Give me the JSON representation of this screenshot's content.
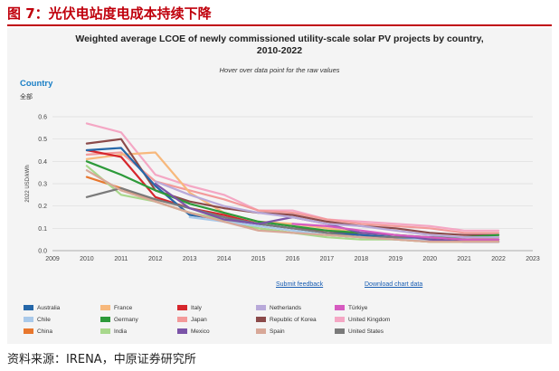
{
  "figure": {
    "title": "图 7：光伏电站度电成本持续下降",
    "source": "资料来源：IRENA，中原证券研究所"
  },
  "filter": {
    "label": "Country",
    "value": "全部"
  },
  "links": {
    "submit_feedback": "Submit feedback",
    "download_data": "Download chart data"
  },
  "chart_data": {
    "type": "line",
    "title": "Weighted average LCOE of newly commissioned utility-scale solar PV projects by country, 2010-2022",
    "title_lines": [
      "Weighted average LCOE of newly commissioned utility-scale solar PV projects by country,",
      "2010-2022"
    ],
    "subtitle": "Hover over data point for the raw values",
    "ylabel": "2022 USD/kWh",
    "xlabel": "",
    "xlim": [
      2009,
      2023
    ],
    "ylim": [
      0,
      0.6
    ],
    "x_ticks": [
      "2009",
      "2010",
      "2011",
      "2012",
      "2013",
      "2014",
      "2015",
      "2016",
      "2017",
      "2018",
      "2019",
      "2020",
      "2021",
      "2022",
      "2023"
    ],
    "y_ticks": [
      "0.0",
      "0.1",
      "0.2",
      "0.3",
      "0.4",
      "0.5",
      "0.6"
    ],
    "grid": true,
    "legend_position": "bottom",
    "series": [
      {
        "name": "United Kingdom",
        "color": "#f4a7c4",
        "x": [
          2010,
          2011,
          2012,
          2013,
          2014,
          2015,
          2016,
          2017,
          2018,
          2019,
          2020,
          2021,
          2022
        ],
        "values": [
          0.57,
          0.53,
          0.34,
          0.29,
          0.25,
          0.18,
          0.18,
          0.14,
          0.13,
          0.12,
          0.11,
          0.09,
          0.09
        ]
      },
      {
        "name": "Japan",
        "color": "#f39a9a",
        "x": [
          2010,
          2011,
          2012,
          2013,
          2014,
          2015,
          2016,
          2017,
          2018,
          2019,
          2020,
          2021,
          2022
        ],
        "values": [
          0.43,
          0.44,
          0.31,
          0.27,
          0.23,
          0.18,
          0.17,
          0.14,
          0.12,
          0.11,
          0.1,
          0.08,
          0.08
        ]
      },
      {
        "name": "France",
        "color": "#f7b87c",
        "x": [
          2010,
          2011,
          2012,
          2013,
          2014,
          2015,
          2016,
          2017,
          2018,
          2019,
          2020,
          2021,
          2022
        ],
        "values": [
          0.41,
          0.43,
          0.44,
          0.26,
          0.17,
          0.13,
          0.12,
          0.1,
          0.08,
          0.07,
          0.06,
          0.05,
          0.06
        ]
      },
      {
        "name": "Republic of Korea",
        "color": "#8b4a4a",
        "x": [
          2010,
          2011,
          2012,
          2013,
          2014,
          2015,
          2016,
          2017,
          2018,
          2019,
          2020,
          2021,
          2022
        ],
        "values": [
          0.48,
          0.5,
          0.27,
          0.22,
          0.19,
          0.17,
          0.16,
          0.13,
          0.11,
          0.1,
          0.08,
          0.07,
          0.07
        ]
      },
      {
        "name": "Italy",
        "color": "#d6262c",
        "x": [
          2010,
          2011,
          2012,
          2013,
          2014,
          2015,
          2016,
          2017,
          2018,
          2019,
          2020,
          2021,
          2022
        ],
        "values": [
          0.45,
          0.42,
          0.24,
          0.19,
          0.16,
          0.12,
          0.1,
          0.09,
          0.07,
          0.06,
          0.05,
          0.05,
          0.05
        ]
      },
      {
        "name": "Australia",
        "color": "#2567a9",
        "x": [
          2010,
          2011,
          2012,
          2013,
          2014,
          2015,
          2016,
          2017,
          2018,
          2019,
          2020,
          2021,
          2022
        ],
        "values": [
          0.45,
          0.46,
          0.29,
          0.16,
          0.14,
          0.12,
          0.1,
          0.08,
          0.07,
          0.06,
          0.05,
          0.04,
          0.04
        ]
      },
      {
        "name": "Germany",
        "color": "#2d9a3a",
        "x": [
          2010,
          2011,
          2012,
          2013,
          2014,
          2015,
          2016,
          2017,
          2018,
          2019,
          2020,
          2021,
          2022
        ],
        "values": [
          0.4,
          0.34,
          0.27,
          0.21,
          0.17,
          0.13,
          0.11,
          0.09,
          0.08,
          0.07,
          0.06,
          0.06,
          0.07
        ]
      },
      {
        "name": "China",
        "color": "#e8772e",
        "x": [
          2010,
          2011,
          2012,
          2013,
          2014,
          2015,
          2016,
          2017,
          2018,
          2019,
          2020,
          2021,
          2022
        ],
        "values": [
          0.33,
          0.28,
          0.22,
          0.17,
          0.13,
          0.1,
          0.08,
          0.07,
          0.06,
          0.05,
          0.04,
          0.04,
          0.04
        ]
      },
      {
        "name": "India",
        "color": "#a8d88c",
        "x": [
          2010,
          2011,
          2012,
          2013,
          2014,
          2015,
          2016,
          2017,
          2018,
          2019,
          2020,
          2021,
          2022
        ],
        "values": [
          0.38,
          0.25,
          0.22,
          0.17,
          0.14,
          0.1,
          0.08,
          0.06,
          0.05,
          0.05,
          0.04,
          0.04,
          0.04
        ]
      },
      {
        "name": "United States",
        "color": "#7a7a7a",
        "x": [
          2010,
          2011,
          2012,
          2013,
          2014,
          2015,
          2016,
          2017,
          2018,
          2019,
          2020,
          2021,
          2022
        ],
        "values": [
          0.24,
          0.28,
          0.23,
          0.19,
          0.15,
          0.12,
          0.1,
          0.08,
          0.06,
          0.06,
          0.06,
          0.05,
          0.05
        ]
      },
      {
        "name": "Chile",
        "color": "#a9c9ea",
        "x": [
          2013,
          2014,
          2015,
          2016,
          2017,
          2018,
          2019,
          2020,
          2021,
          2022
        ],
        "values": [
          0.15,
          0.13,
          0.11,
          0.09,
          0.07,
          0.06,
          0.05,
          0.05,
          0.04,
          0.04
        ]
      },
      {
        "name": "Mexico",
        "color": "#7b54a8",
        "x": [
          2012,
          2013,
          2014,
          2015,
          2016,
          2017,
          2018,
          2019,
          2020,
          2021,
          2022
        ],
        "values": [
          0.3,
          0.19,
          0.14,
          0.12,
          0.15,
          0.12,
          0.08,
          0.07,
          0.05,
          0.04,
          0.04
        ]
      },
      {
        "name": "Netherlands",
        "color": "#b8a9d9",
        "x": [
          2012,
          2013,
          2014,
          2015,
          2016,
          2017,
          2018,
          2019,
          2020,
          2021,
          2022
        ],
        "values": [
          0.31,
          0.25,
          0.2,
          0.17,
          0.15,
          0.12,
          0.11,
          0.09,
          0.07,
          0.06,
          0.06
        ]
      },
      {
        "name": "Spain",
        "color": "#d8a898",
        "x": [
          2010,
          2011,
          2012,
          2013,
          2014,
          2015,
          2016,
          2017,
          2018,
          2019,
          2020,
          2021,
          2022
        ],
        "values": [
          0.36,
          0.27,
          0.22,
          0.17,
          0.13,
          0.09,
          0.08,
          0.07,
          0.06,
          0.05,
          0.04,
          0.04,
          0.04
        ]
      },
      {
        "name": "Türkiye",
        "color": "#d65bc0",
        "x": [
          2016,
          2017,
          2018,
          2019,
          2020,
          2021,
          2022
        ],
        "values": [
          0.12,
          0.11,
          0.09,
          0.07,
          0.06,
          0.05,
          0.05
        ]
      }
    ],
    "legend": [
      {
        "name": "Australia",
        "color": "#2567a9"
      },
      {
        "name": "France",
        "color": "#f7b87c"
      },
      {
        "name": "Italy",
        "color": "#d6262c"
      },
      {
        "name": "Netherlands",
        "color": "#b8a9d9"
      },
      {
        "name": "Türkiye",
        "color": "#d65bc0"
      },
      {
        "name": "Chile",
        "color": "#a9c9ea"
      },
      {
        "name": "Germany",
        "color": "#2d9a3a"
      },
      {
        "name": "Japan",
        "color": "#f39a9a"
      },
      {
        "name": "Republic of Korea",
        "color": "#8b4a4a"
      },
      {
        "name": "United Kingdom",
        "color": "#f4a7c4"
      },
      {
        "name": "China",
        "color": "#e8772e"
      },
      {
        "name": "India",
        "color": "#a8d88c"
      },
      {
        "name": "Mexico",
        "color": "#7b54a8"
      },
      {
        "name": "Spain",
        "color": "#d8a898"
      },
      {
        "name": "United States",
        "color": "#7a7a7a"
      }
    ]
  }
}
